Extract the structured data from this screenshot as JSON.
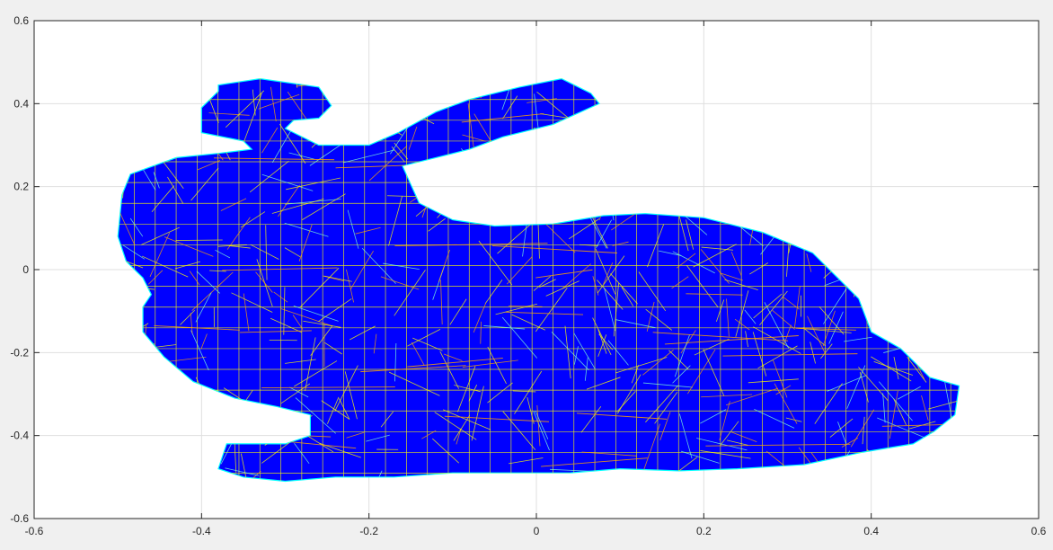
{
  "chart_data": {
    "type": "mesh",
    "title": "",
    "xlabel": "",
    "ylabel": "",
    "xlim": [
      -0.6,
      0.6
    ],
    "ylim": [
      -0.6,
      0.6
    ],
    "grid": true,
    "xticks": [
      -0.6,
      -0.4,
      -0.2,
      0,
      0.2,
      0.4,
      0.6
    ],
    "yticks": [
      -0.6,
      -0.4,
      -0.2,
      0,
      0.2,
      0.4,
      0.6
    ],
    "xtick_labels": [
      "-0.6",
      "-0.4",
      "-0.2",
      "0",
      "0.2",
      "0.4",
      "0.6"
    ],
    "ytick_labels": [
      "-0.6",
      "-0.4",
      "-0.2",
      "0",
      "0.2",
      "0.4",
      "0.6"
    ],
    "fill_color": "#0000ff",
    "edge_colors": [
      "#ffff00",
      "#ffa500",
      "#00ffff",
      "#7fffd4"
    ],
    "outline": [
      [
        -0.33,
        0.46
      ],
      [
        -0.26,
        0.44
      ],
      [
        -0.245,
        0.395
      ],
      [
        -0.26,
        0.365
      ],
      [
        -0.29,
        0.36
      ],
      [
        -0.3,
        0.34
      ],
      [
        -0.26,
        0.3
      ],
      [
        -0.2,
        0.3
      ],
      [
        -0.165,
        0.33
      ],
      [
        -0.12,
        0.38
      ],
      [
        -0.08,
        0.41
      ],
      [
        -0.02,
        0.44
      ],
      [
        0.03,
        0.46
      ],
      [
        0.065,
        0.425
      ],
      [
        0.075,
        0.4
      ],
      [
        0.02,
        0.35
      ],
      [
        -0.04,
        0.32
      ],
      [
        -0.08,
        0.29
      ],
      [
        -0.12,
        0.27
      ],
      [
        -0.16,
        0.25
      ],
      [
        -0.14,
        0.16
      ],
      [
        -0.1,
        0.12
      ],
      [
        -0.05,
        0.105
      ],
      [
        0.02,
        0.11
      ],
      [
        0.08,
        0.13
      ],
      [
        0.13,
        0.135
      ],
      [
        0.2,
        0.125
      ],
      [
        0.27,
        0.09
      ],
      [
        0.33,
        0.04
      ],
      [
        0.36,
        -0.02
      ],
      [
        0.385,
        -0.07
      ],
      [
        0.4,
        -0.15
      ],
      [
        0.435,
        -0.19
      ],
      [
        0.47,
        -0.26
      ],
      [
        0.505,
        -0.28
      ],
      [
        0.5,
        -0.35
      ],
      [
        0.475,
        -0.39
      ],
      [
        0.45,
        -0.42
      ],
      [
        0.39,
        -0.44
      ],
      [
        0.32,
        -0.47
      ],
      [
        0.24,
        -0.48
      ],
      [
        0.17,
        -0.485
      ],
      [
        0.1,
        -0.48
      ],
      [
        0.04,
        -0.49
      ],
      [
        -0.03,
        -0.49
      ],
      [
        -0.1,
        -0.49
      ],
      [
        -0.17,
        -0.5
      ],
      [
        -0.24,
        -0.5
      ],
      [
        -0.3,
        -0.51
      ],
      [
        -0.35,
        -0.5
      ],
      [
        -0.38,
        -0.48
      ],
      [
        -0.37,
        -0.42
      ],
      [
        -0.3,
        -0.42
      ],
      [
        -0.27,
        -0.4
      ],
      [
        -0.27,
        -0.35
      ],
      [
        -0.31,
        -0.33
      ],
      [
        -0.36,
        -0.31
      ],
      [
        -0.41,
        -0.27
      ],
      [
        -0.445,
        -0.21
      ],
      [
        -0.47,
        -0.15
      ],
      [
        -0.47,
        -0.09
      ],
      [
        -0.46,
        -0.06
      ],
      [
        -0.47,
        -0.02
      ],
      [
        -0.49,
        0.02
      ],
      [
        -0.5,
        0.08
      ],
      [
        -0.495,
        0.18
      ],
      [
        -0.485,
        0.23
      ],
      [
        -0.43,
        0.27
      ],
      [
        -0.38,
        0.28
      ],
      [
        -0.34,
        0.29
      ],
      [
        -0.35,
        0.31
      ],
      [
        -0.4,
        0.33
      ],
      [
        -0.4,
        0.39
      ],
      [
        -0.38,
        0.43
      ],
      [
        -0.38,
        0.445
      ]
    ]
  }
}
